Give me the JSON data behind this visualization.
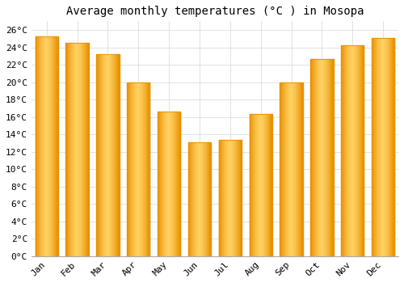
{
  "title": "Average monthly temperatures (°C ) in Mosopa",
  "months": [
    "Jan",
    "Feb",
    "Mar",
    "Apr",
    "May",
    "Jun",
    "Jul",
    "Aug",
    "Sep",
    "Oct",
    "Nov",
    "Dec"
  ],
  "values": [
    25.3,
    24.5,
    23.2,
    20.0,
    16.6,
    13.1,
    13.4,
    16.3,
    20.0,
    22.7,
    24.2,
    25.1
  ],
  "bar_color_center": "#FFD060",
  "bar_color_edge": "#E89000",
  "background_color": "#FFFFFF",
  "grid_color": "#DDDDDD",
  "ylim": [
    0,
    27
  ],
  "yticks": [
    0,
    2,
    4,
    6,
    8,
    10,
    12,
    14,
    16,
    18,
    20,
    22,
    24,
    26
  ],
  "title_fontsize": 10,
  "tick_fontsize": 8
}
